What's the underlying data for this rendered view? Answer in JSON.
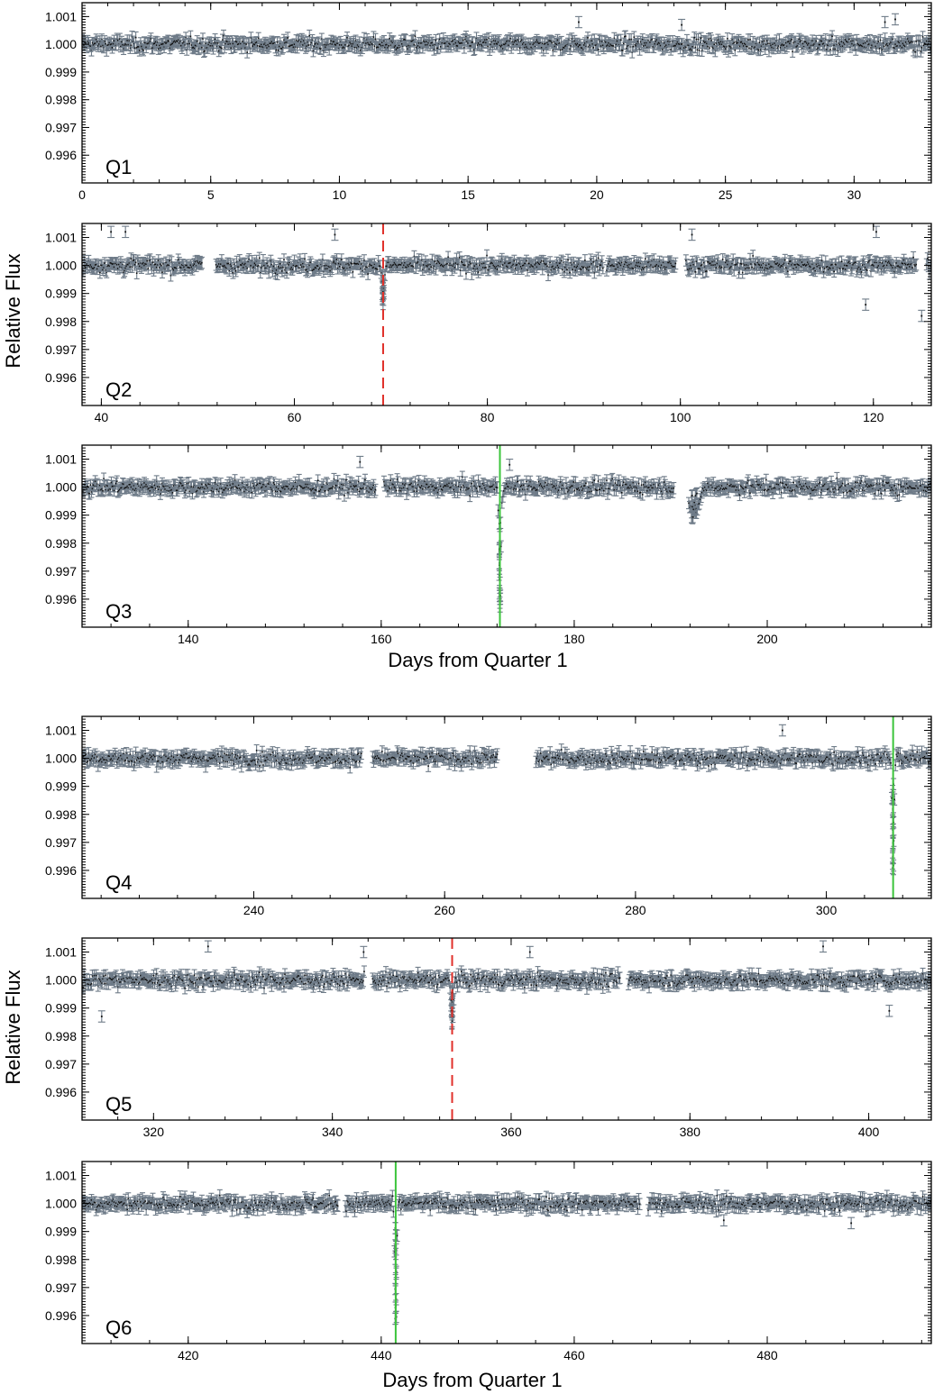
{
  "chart_data": [
    {
      "type": "scatter",
      "panel_label": "Q1",
      "xlim": [
        0,
        33
      ],
      "ylim": [
        0.995,
        1.0015
      ],
      "x_ticks": [
        0,
        5,
        10,
        15,
        20,
        25,
        30
      ],
      "y_ticks": [
        1.001,
        1.0,
        0.999,
        0.998,
        0.997,
        0.996
      ],
      "y_tick_labels": [
        "1.001",
        "1.000",
        "0.999",
        "0.998",
        "0.997",
        "0.996"
      ],
      "gaps": [],
      "series": [
        {
          "baseline": 1.0,
          "scatter": 0.0002,
          "error": 0.0002
        }
      ],
      "outliers": [
        [
          31.2,
          1.0008
        ],
        [
          31.6,
          1.0009
        ],
        [
          19.3,
          1.0008
        ],
        [
          23.3,
          1.0007
        ]
      ],
      "dips": [],
      "event_markers": []
    },
    {
      "type": "scatter",
      "panel_label": "Q2",
      "xlim": [
        38,
        126
      ],
      "ylim": [
        0.995,
        1.0015
      ],
      "x_ticks": [
        40,
        60,
        80,
        100,
        120
      ],
      "y_ticks": [
        1.001,
        1.0,
        0.999,
        0.998,
        0.997,
        0.996
      ],
      "y_tick_labels": [
        "1.001",
        "1.000",
        "0.999",
        "0.998",
        "0.997",
        "0.996"
      ],
      "gaps": [
        [
          50.5,
          51.8
        ],
        [
          92.0,
          92.3
        ],
        [
          99.6,
          100.5
        ],
        [
          124.5,
          125.5
        ]
      ],
      "series": [
        {
          "baseline": 1.0,
          "scatter": 0.0002,
          "error": 0.0002
        }
      ],
      "outliers": [
        [
          41.0,
          1.0012
        ],
        [
          42.5,
          1.0012
        ],
        [
          119.2,
          0.9986
        ],
        [
          125.0,
          0.9982
        ],
        [
          120.3,
          1.0012
        ],
        [
          64.2,
          1.0011
        ],
        [
          101.2,
          1.0011
        ]
      ],
      "dips": [
        {
          "center": 69.2,
          "width": 0.25,
          "depth": 0.0013
        }
      ],
      "event_markers": [
        {
          "x": 69.2,
          "style": "dashed",
          "color": "#e0302a"
        }
      ]
    },
    {
      "type": "scatter",
      "panel_label": "Q3",
      "xlim": [
        129,
        217
      ],
      "ylim": [
        0.995,
        1.0015
      ],
      "x_ticks": [
        140,
        160,
        180,
        200
      ],
      "y_ticks": [
        1.001,
        1.0,
        0.999,
        0.998,
        0.997,
        0.996
      ],
      "y_tick_labels": [
        "1.001",
        "1.000",
        "0.999",
        "0.998",
        "0.997",
        "0.996"
      ],
      "gaps": [
        [
          159.5,
          160.2
        ],
        [
          190.4,
          191.8
        ]
      ],
      "series": [
        {
          "baseline": 1.0,
          "scatter": 0.0002,
          "error": 0.0002
        }
      ],
      "outliers": [
        [
          157.8,
          1.0009
        ],
        [
          173.3,
          1.0008
        ]
      ],
      "dips": [
        {
          "center": 172.3,
          "width": 0.2,
          "depth": 0.0042
        },
        {
          "center": 192.4,
          "width": 0.9,
          "depth": 0.0011
        }
      ],
      "event_markers": [
        {
          "x": 172.3,
          "style": "solid",
          "color": "#3cc43c"
        }
      ],
      "xlabel": "Days from Quarter 1"
    },
    {
      "type": "scatter",
      "panel_label": "Q4",
      "xlim": [
        222,
        311
      ],
      "ylim": [
        0.995,
        1.0015
      ],
      "x_ticks": [
        240,
        260,
        280,
        300
      ],
      "y_ticks": [
        1.001,
        1.0,
        0.999,
        0.998,
        0.997,
        0.996
      ],
      "y_tick_labels": [
        "1.001",
        "1.000",
        "0.999",
        "0.998",
        "0.997",
        "0.996"
      ],
      "gaps": [
        [
          251.3,
          252.4
        ],
        [
          265.6,
          269.5
        ]
      ],
      "series": [
        {
          "baseline": 1.0,
          "scatter": 0.0002,
          "error": 0.0002
        }
      ],
      "outliers": [
        [
          295.4,
          1.001
        ]
      ],
      "dips": [
        {
          "center": 307.0,
          "width": 0.2,
          "depth": 0.0042
        }
      ],
      "event_markers": [
        {
          "x": 307.0,
          "style": "solid",
          "color": "#3cc43c"
        }
      ]
    },
    {
      "type": "scatter",
      "panel_label": "Q5",
      "xlim": [
        312,
        407
      ],
      "ylim": [
        0.995,
        1.0015
      ],
      "x_ticks": [
        320,
        340,
        360,
        380,
        400
      ],
      "y_ticks": [
        1.001,
        1.0,
        0.999,
        0.998,
        0.997,
        0.996
      ],
      "y_tick_labels": [
        "1.001",
        "1.000",
        "0.999",
        "0.998",
        "0.997",
        "0.996"
      ],
      "gaps": [
        [
          343.6,
          344.5
        ],
        [
          372.2,
          373.1
        ]
      ],
      "series": [
        {
          "baseline": 1.0,
          "scatter": 0.0002,
          "error": 0.0002
        }
      ],
      "outliers": [
        [
          314.2,
          0.9987
        ],
        [
          326.1,
          1.0012
        ],
        [
          343.5,
          1.001
        ],
        [
          394.9,
          1.0012
        ],
        [
          402.3,
          0.9989
        ],
        [
          362.1,
          1.001
        ]
      ],
      "dips": [
        {
          "center": 353.4,
          "width": 0.25,
          "depth": 0.0016
        }
      ],
      "event_markers": [
        {
          "x": 353.4,
          "style": "dashed",
          "color": "#e0302a"
        }
      ]
    },
    {
      "type": "scatter",
      "panel_label": "Q6",
      "xlim": [
        409,
        497
      ],
      "ylim": [
        0.995,
        1.0015
      ],
      "x_ticks": [
        420,
        440,
        460,
        480
      ],
      "y_ticks": [
        1.001,
        1.0,
        0.999,
        0.998,
        0.997,
        0.996
      ],
      "y_tick_labels": [
        "1.001",
        "1.000",
        "0.999",
        "0.998",
        "0.997",
        "0.996"
      ],
      "gaps": [
        [
          435.5,
          436.2
        ],
        [
          466.8,
          467.6
        ]
      ],
      "series": [
        {
          "baseline": 1.0,
          "scatter": 0.0002,
          "error": 0.0002
        }
      ],
      "outliers": [
        [
          475.5,
          0.9994
        ],
        [
          488.7,
          0.9993
        ]
      ],
      "dips": [
        {
          "center": 441.5,
          "width": 0.2,
          "depth": 0.0042
        }
      ],
      "event_markers": [
        {
          "x": 441.5,
          "style": "solid",
          "color": "#3cc43c"
        }
      ],
      "xlabel": "Days from Quarter 1"
    }
  ],
  "ylabels": [
    "Relative Flux",
    "Relative Flux"
  ]
}
